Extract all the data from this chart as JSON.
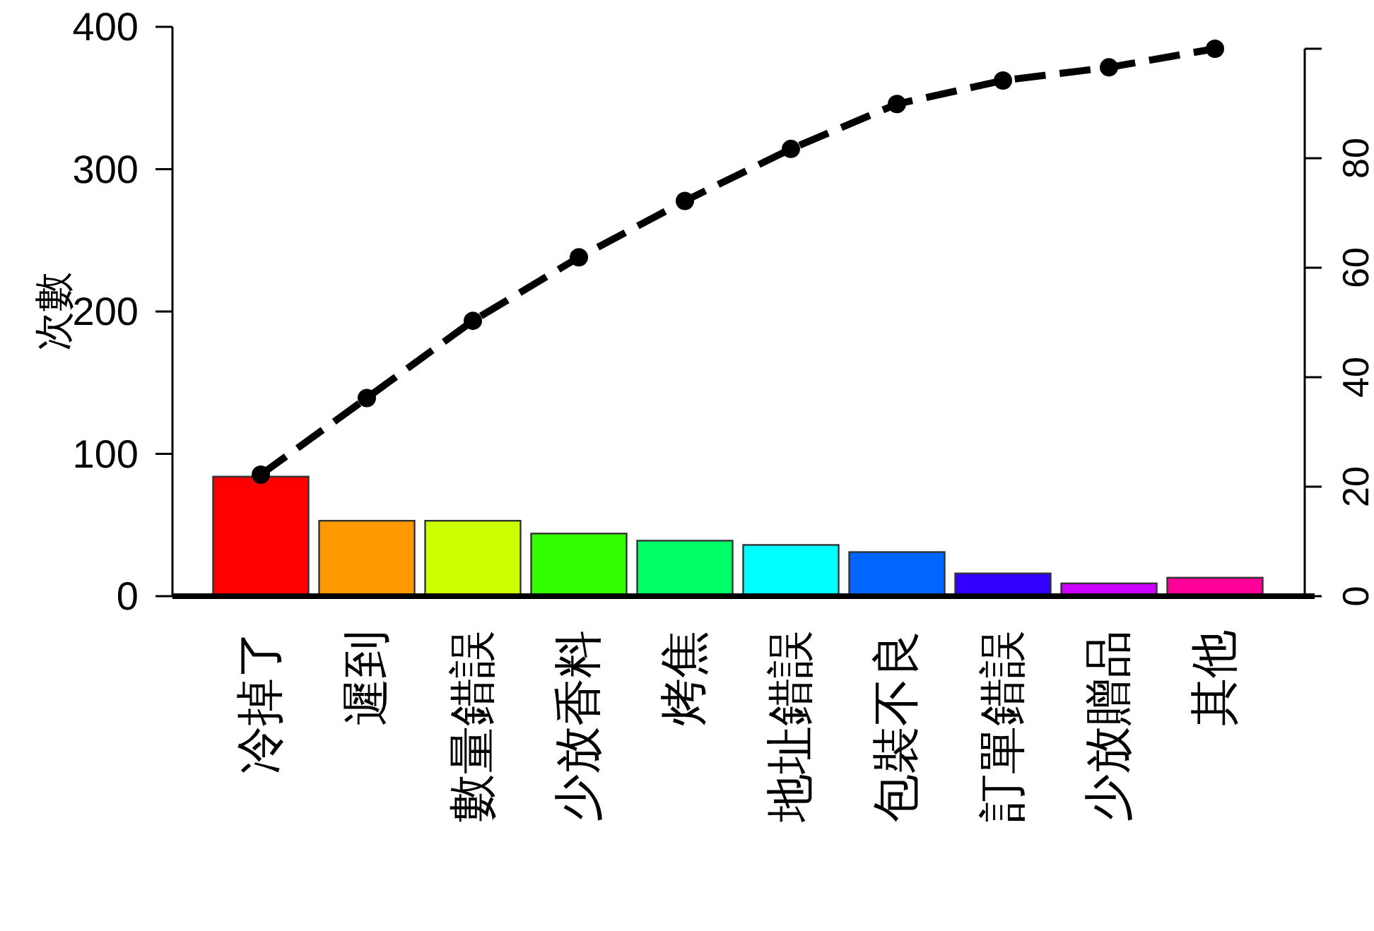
{
  "chart_data": {
    "type": "bar",
    "ylabel": "次數",
    "categories": [
      "冷掉了",
      "遲到",
      "數量錯誤",
      "少放香料",
      "烤焦",
      "地址錯誤",
      "包裝不良",
      "訂單錯誤",
      "少放贈品",
      "其他"
    ],
    "ylim": [
      0,
      400
    ],
    "yticks": [
      0,
      100,
      200,
      300,
      400
    ],
    "y2lim": [
      0,
      104
    ],
    "y2ticks": [
      0,
      20,
      40,
      60,
      80,
      {
        "value": 100,
        "label": null
      }
    ],
    "series": [
      {
        "colors": [
          "#ff0000",
          "#ff9900",
          "#ccff00",
          "#33ff00",
          "#00ff66",
          "#00ffff",
          "#0066ff",
          "#3300ff",
          "#cc00ff",
          "#ff0099"
        ],
        "values": [
          84,
          53,
          53,
          44,
          39,
          36,
          31,
          16,
          9,
          13
        ]
      },
      {
        "type": "line",
        "axis": "y2",
        "color": "#000000",
        "marker": "circle",
        "line_style": "dashed",
        "values": [
          22.2,
          36.2,
          50.3,
          61.9,
          72.2,
          81.7,
          89.9,
          94.2,
          96.6,
          100
        ]
      }
    ],
    "grid": false
  }
}
